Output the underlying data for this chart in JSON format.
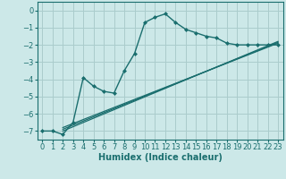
{
  "title": "",
  "xlabel": "Humidex (Indice chaleur)",
  "xlim": [
    -0.5,
    23.5
  ],
  "ylim": [
    -7.5,
    0.5
  ],
  "bg_color": "#cce8e8",
  "grid_color": "#aacccc",
  "line_color": "#1a6e6e",
  "xticks": [
    0,
    1,
    2,
    3,
    4,
    5,
    6,
    7,
    8,
    9,
    10,
    11,
    12,
    13,
    14,
    15,
    16,
    17,
    18,
    19,
    20,
    21,
    22,
    23
  ],
  "yticks": [
    0,
    -1,
    -2,
    -3,
    -4,
    -5,
    -6,
    -7
  ],
  "curve1_x": [
    0,
    1,
    2,
    3,
    4,
    5,
    6,
    7,
    8,
    9,
    10,
    11,
    12,
    13,
    14,
    15,
    16,
    17,
    18,
    19,
    20,
    21,
    22,
    23
  ],
  "curve1_y": [
    -7.0,
    -7.0,
    -7.2,
    -6.5,
    -3.9,
    -4.4,
    -4.7,
    -4.8,
    -3.5,
    -2.5,
    -0.7,
    -0.4,
    -0.2,
    -0.7,
    -1.1,
    -1.3,
    -1.5,
    -1.6,
    -1.9,
    -2.0,
    -2.0,
    -2.0,
    -2.0,
    -2.0
  ],
  "line1_x": [
    2,
    23
  ],
  "line1_y": [
    -6.9,
    -1.85
  ],
  "line2_x": [
    2,
    23
  ],
  "line2_y": [
    -7.0,
    -1.8
  ],
  "line3_x": [
    2,
    23
  ],
  "line3_y": [
    -6.8,
    -1.9
  ],
  "xlabel_fontsize": 7,
  "tick_fontsize": 6
}
